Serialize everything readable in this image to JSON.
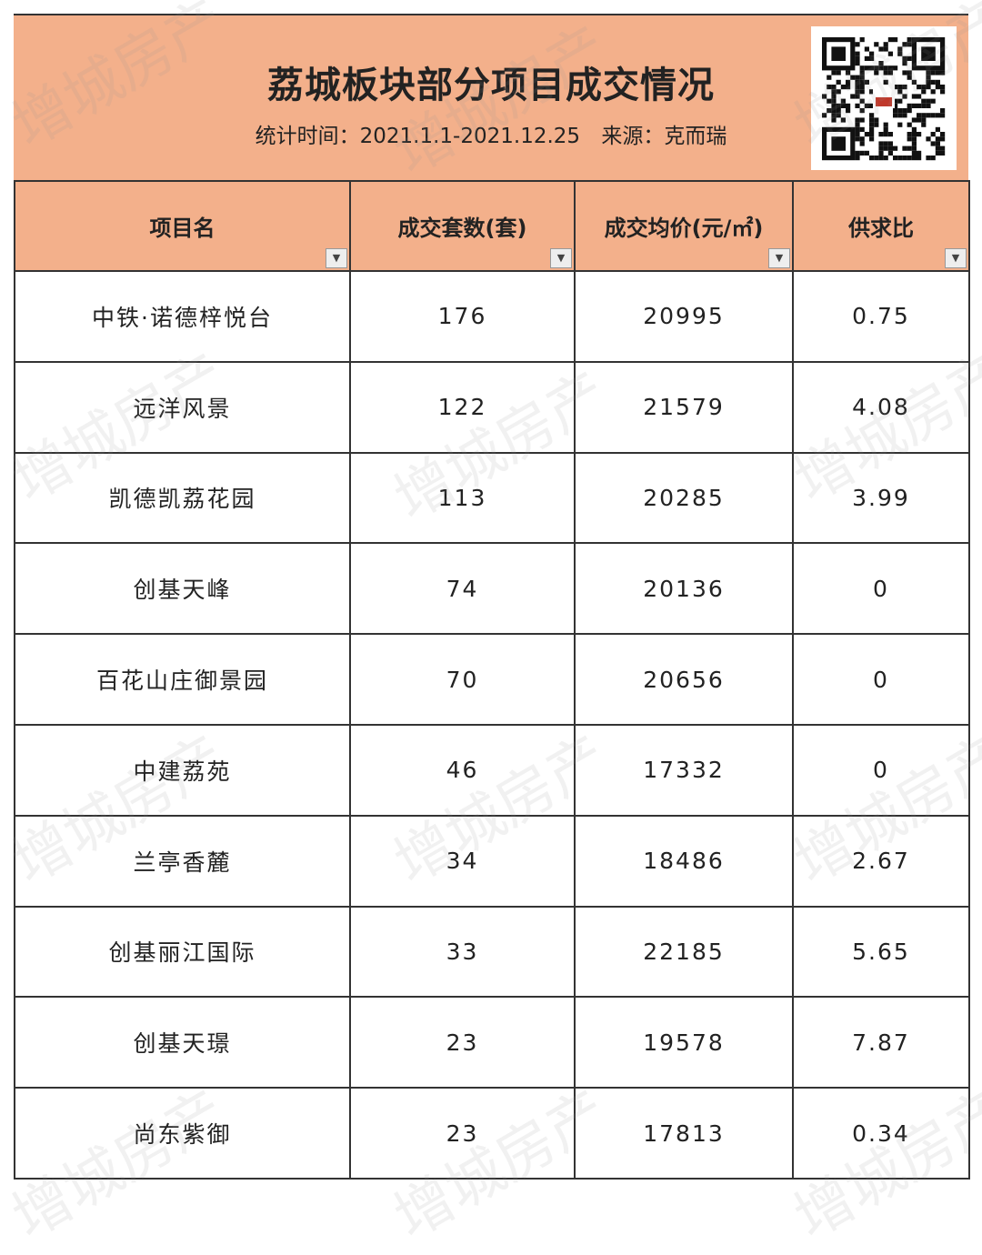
{
  "title": "荔城板块部分项目成交情况",
  "subtitle": {
    "period": "统计时间：2021.1.1-2021.12.25",
    "source": "来源：克而瑞"
  },
  "watermark": "增城房产",
  "colors": {
    "header_bg": "#f3b08b",
    "border": "#333333"
  },
  "table": {
    "headers": [
      "项目名",
      "成交套数(套)",
      "成交均价(元/㎡)",
      "供求比"
    ],
    "rows": [
      [
        "中铁·诺德梓悦台",
        "176",
        "20995",
        "0.75"
      ],
      [
        "远洋风景",
        "122",
        "21579",
        "4.08"
      ],
      [
        "凯德凯荔花园",
        "113",
        "20285",
        "3.99"
      ],
      [
        "创基天峰",
        "74",
        "20136",
        "0"
      ],
      [
        "百花山庄御景园",
        "70",
        "20656",
        "0"
      ],
      [
        "中建荔苑",
        "46",
        "17332",
        "0"
      ],
      [
        "兰亭香麓",
        "34",
        "18486",
        "2.67"
      ],
      [
        "创基丽江国际",
        "33",
        "22185",
        "5.65"
      ],
      [
        "创基天璟",
        "23",
        "19578",
        "7.87"
      ],
      [
        "尚东紫御",
        "23",
        "17813",
        "0.34"
      ]
    ]
  }
}
